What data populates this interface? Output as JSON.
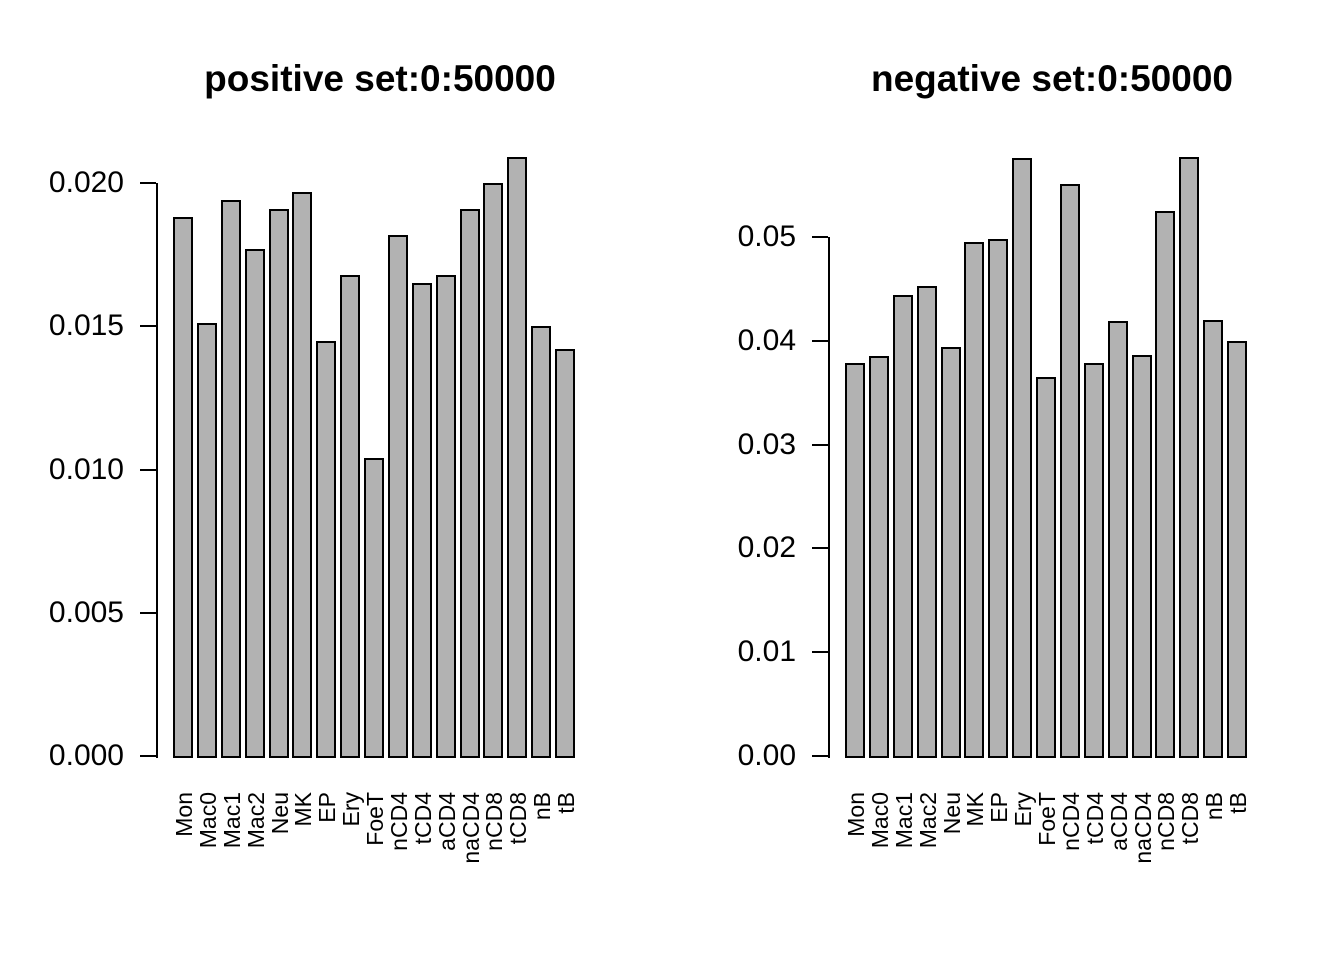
{
  "figure": {
    "background": "#ffffff",
    "bar_fill": "#b2b2b2",
    "bar_border": "#000000",
    "text_color": "#000000"
  },
  "chart_data": [
    {
      "type": "bar",
      "title": "positive set:0:50000",
      "categories": [
        "Mon",
        "Mac0",
        "Mac1",
        "Mac2",
        "Neu",
        "MK",
        "EP",
        "Ery",
        "FoeT",
        "nCD4",
        "tCD4",
        "aCD4",
        "naCD4",
        "nCD8",
        "tCD8",
        "nB",
        "tB"
      ],
      "values": [
        0.0188,
        0.0151,
        0.0194,
        0.0177,
        0.0191,
        0.0197,
        0.0145,
        0.0168,
        0.0104,
        0.0182,
        0.0165,
        0.0168,
        0.0191,
        0.02,
        0.0209,
        0.015,
        0.0142
      ],
      "xlabel": "",
      "ylabel": "",
      "ylim": [
        0,
        0.02
      ],
      "yticks": [
        0,
        0.005,
        0.01,
        0.015,
        0.02
      ],
      "ytick_labels": [
        "0.000",
        "0.005",
        "0.010",
        "0.015",
        "0.020"
      ],
      "grid": false,
      "legend": null,
      "x_label_rotation": 90
    },
    {
      "type": "bar",
      "title": "negative set:0:50000",
      "categories": [
        "Mon",
        "Mac0",
        "Mac1",
        "Mac2",
        "Neu",
        "MK",
        "EP",
        "Ery",
        "FoeT",
        "nCD4",
        "tCD4",
        "aCD4",
        "naCD4",
        "nCD8",
        "tCD8",
        "nB",
        "tB"
      ],
      "values": [
        0.0379,
        0.0385,
        0.0444,
        0.0453,
        0.0394,
        0.0495,
        0.0498,
        0.0576,
        0.0365,
        0.0551,
        0.0379,
        0.0419,
        0.0386,
        0.0525,
        0.0577,
        0.042,
        0.04
      ],
      "xlabel": "",
      "ylabel": "",
      "ylim": [
        0,
        0.05
      ],
      "yticks": [
        0,
        0.01,
        0.02,
        0.03,
        0.04,
        0.05
      ],
      "ytick_labels": [
        "0.00",
        "0.01",
        "0.02",
        "0.03",
        "0.04",
        "0.05"
      ],
      "grid": false,
      "legend": null,
      "x_label_rotation": 90
    }
  ]
}
